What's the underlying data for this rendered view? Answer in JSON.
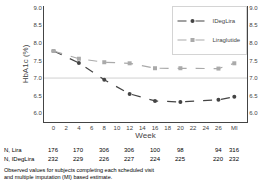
{
  "chart_data": {
    "type": "line",
    "x": [
      0,
      4,
      8,
      12,
      16,
      20,
      26,
      28.5
    ],
    "series": [
      {
        "name": "IDegLira",
        "color": "#444444",
        "marker": "circle",
        "line_style": "dashed",
        "values": [
          7.77,
          7.43,
          6.95,
          6.55,
          6.35,
          6.32,
          6.38,
          6.47
        ]
      },
      {
        "name": "Liraglutide",
        "color": "#aaaaaa",
        "marker": "square",
        "line_style": "dashed",
        "values": [
          7.77,
          7.55,
          7.45,
          7.42,
          7.28,
          7.28,
          7.27,
          7.42
        ]
      }
    ],
    "xlabel": "Week",
    "ylabel": "HbA1c (%)",
    "xlim": [
      -1.5,
      30.5
    ],
    "xticks": [
      0,
      2,
      4,
      6,
      8,
      10,
      12,
      14,
      16,
      18,
      20,
      22,
      24,
      26,
      {
        "value": 28.5,
        "label": "MI"
      }
    ],
    "ylim": [
      5.75,
      9.05
    ],
    "yticks": [
      {
        "value": 6.0,
        "label": "6.0"
      },
      {
        "value": 6.5,
        "label": "6.5"
      },
      {
        "value": 7.0,
        "label": "7.0"
      },
      {
        "value": 7.5,
        "label": "7.5"
      },
      {
        "value": 8.0,
        "label": "8.0"
      },
      {
        "value": 8.5,
        "label": "8.5"
      },
      {
        "value": 9.0,
        "label": "9.0"
      }
    ],
    "y2lim": [
      5.75,
      9.05
    ],
    "y2ticks": [
      {
        "value": 6.0,
        "label": "6.0"
      },
      {
        "value": 6.5,
        "label": "6.5"
      },
      {
        "value": 7.0,
        "label": "7.0"
      },
      {
        "value": 7.5,
        "label": "7.5"
      },
      {
        "value": 8.0,
        "label": "8.0"
      },
      {
        "value": 8.5,
        "label": "8.5"
      },
      {
        "value": 9.0,
        "label": "9.0"
      }
    ],
    "hline": 7.0,
    "legend": "upper right",
    "grid": false,
    "n_rows": [
      {
        "label": "N, Lira",
        "x": [
          0,
          4,
          8,
          12,
          16,
          20,
          26,
          28.5
        ],
        "values": [
          176,
          170,
          306,
          306,
          100,
          98,
          94,
          316
        ]
      },
      {
        "label": "N, IDegLira",
        "x": [
          0,
          4,
          8,
          12,
          16,
          20,
          26,
          28.5
        ],
        "values": [
          232,
          229,
          226,
          227,
          224,
          225,
          220,
          232
        ]
      }
    ],
    "footnote": "Observed values for subjects completing each scheduled visit and multiple imputation (MI) based estimate."
  }
}
